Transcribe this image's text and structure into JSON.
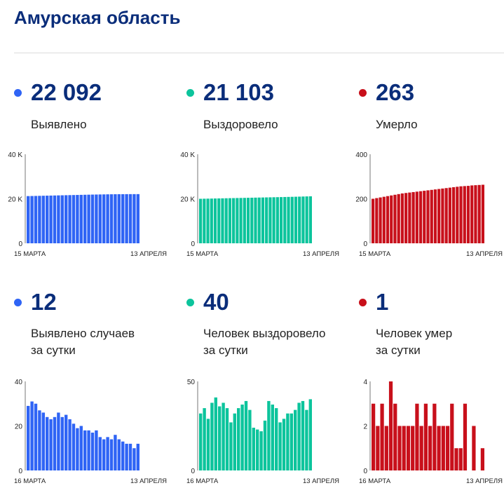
{
  "region_title": "Амурская область",
  "stats": [
    {
      "value": "22 092",
      "label_lines": [
        "Выявлено"
      ],
      "color": "#2f64f5"
    },
    {
      "value": "21 103",
      "label_lines": [
        "Выздоровело"
      ],
      "color": "#0cc49c"
    },
    {
      "value": "263",
      "label_lines": [
        "Умерло"
      ],
      "color": "#c8101b"
    },
    {
      "value": "12",
      "label_lines": [
        "Выявлено случаев",
        "за сутки"
      ],
      "color": "#2f64f5"
    },
    {
      "value": "40",
      "label_lines": [
        "Человек выздоровело",
        "за сутки"
      ],
      "color": "#0cc49c"
    },
    {
      "value": "1",
      "label_lines": [
        "Человек умер",
        "за сутки"
      ],
      "color": "#c8101b"
    }
  ],
  "chart_data": [
    {
      "type": "bar",
      "color": "#2f64f5",
      "ylim": [
        0,
        40000
      ],
      "y_ticks": [
        {
          "value": 0,
          "label": "0"
        },
        {
          "value": 20000,
          "label": "20 K"
        },
        {
          "value": 40000,
          "label": "40 K"
        }
      ],
      "x_labels": [
        "15 МАРТА",
        "13 АПРЕЛЯ"
      ],
      "values": [
        21200,
        21240,
        21280,
        21320,
        21360,
        21400,
        21440,
        21480,
        21520,
        21560,
        21600,
        21640,
        21680,
        21720,
        21760,
        21800,
        21840,
        21880,
        21910,
        21940,
        21970,
        22000,
        22020,
        22040,
        22055,
        22070,
        22080,
        22085,
        22090,
        22092
      ]
    },
    {
      "type": "bar",
      "color": "#0cc49c",
      "ylim": [
        0,
        40000
      ],
      "y_ticks": [
        {
          "value": 0,
          "label": "0"
        },
        {
          "value": 20000,
          "label": "20 K"
        },
        {
          "value": 40000,
          "label": "40 K"
        }
      ],
      "x_labels": [
        "15 МАРТА",
        "13 АПРЕЛЯ"
      ],
      "values": [
        20000,
        20030,
        20060,
        20095,
        20130,
        20165,
        20200,
        20235,
        20270,
        20305,
        20340,
        20375,
        20410,
        20445,
        20480,
        20515,
        20550,
        20585,
        20620,
        20655,
        20690,
        20725,
        20760,
        20800,
        20840,
        20880,
        20920,
        20965,
        21015,
        21060,
        21103
      ]
    },
    {
      "type": "bar",
      "color": "#c8101b",
      "ylim": [
        0,
        400
      ],
      "y_ticks": [
        {
          "value": 0,
          "label": "0"
        },
        {
          "value": 200,
          "label": "200"
        },
        {
          "value": 400,
          "label": "400"
        }
      ],
      "x_labels": [
        "15 МАРТА",
        "13 АПРЕЛЯ"
      ],
      "values": [
        200,
        203,
        206,
        209,
        212,
        215,
        218,
        221,
        224,
        226,
        228,
        230,
        232,
        234,
        236,
        238,
        240,
        242,
        244,
        246,
        248,
        250,
        252,
        254,
        256,
        257,
        258,
        260,
        261,
        262,
        263
      ]
    },
    {
      "type": "bar",
      "color": "#2f64f5",
      "ylim": [
        0,
        40
      ],
      "y_ticks": [
        {
          "value": 0,
          "label": "0"
        },
        {
          "value": 20,
          "label": "20"
        },
        {
          "value": 40,
          "label": "40"
        }
      ],
      "x_labels": [
        "16 МАРТА",
        "13 АПРЕЛЯ"
      ],
      "values": [
        29,
        31,
        30,
        27,
        26,
        24,
        23,
        24,
        26,
        24,
        25,
        23,
        21,
        19,
        20,
        18,
        18,
        17,
        18,
        15,
        14,
        15,
        14,
        16,
        14,
        13,
        12,
        12,
        10,
        12
      ]
    },
    {
      "type": "bar",
      "color": "#0cc49c",
      "ylim": [
        0,
        50
      ],
      "y_ticks": [
        {
          "value": 0,
          "label": "0"
        },
        {
          "value": 50,
          "label": "50"
        }
      ],
      "x_labels": [
        "16 МАРТА",
        "13 АПРЕЛЯ"
      ],
      "values": [
        32,
        35,
        29,
        38,
        41,
        36,
        38,
        35,
        27,
        32,
        35,
        37,
        39,
        34,
        24,
        23,
        22,
        28,
        39,
        37,
        35,
        27,
        29,
        32,
        32,
        34,
        38,
        39,
        34,
        40
      ]
    },
    {
      "type": "bar",
      "color": "#c8101b",
      "ylim": [
        0,
        4
      ],
      "y_ticks": [
        {
          "value": 0,
          "label": "0"
        },
        {
          "value": 2,
          "label": "2"
        },
        {
          "value": 4,
          "label": "4"
        }
      ],
      "x_labels": [
        "16 МАРТА",
        "13 АПРЕЛЯ"
      ],
      "values": [
        3,
        2,
        3,
        2,
        4,
        3,
        2,
        2,
        2,
        2,
        3,
        2,
        3,
        2,
        3,
        2,
        2,
        2,
        3,
        1,
        1,
        3,
        0,
        2,
        0,
        1
      ]
    }
  ]
}
